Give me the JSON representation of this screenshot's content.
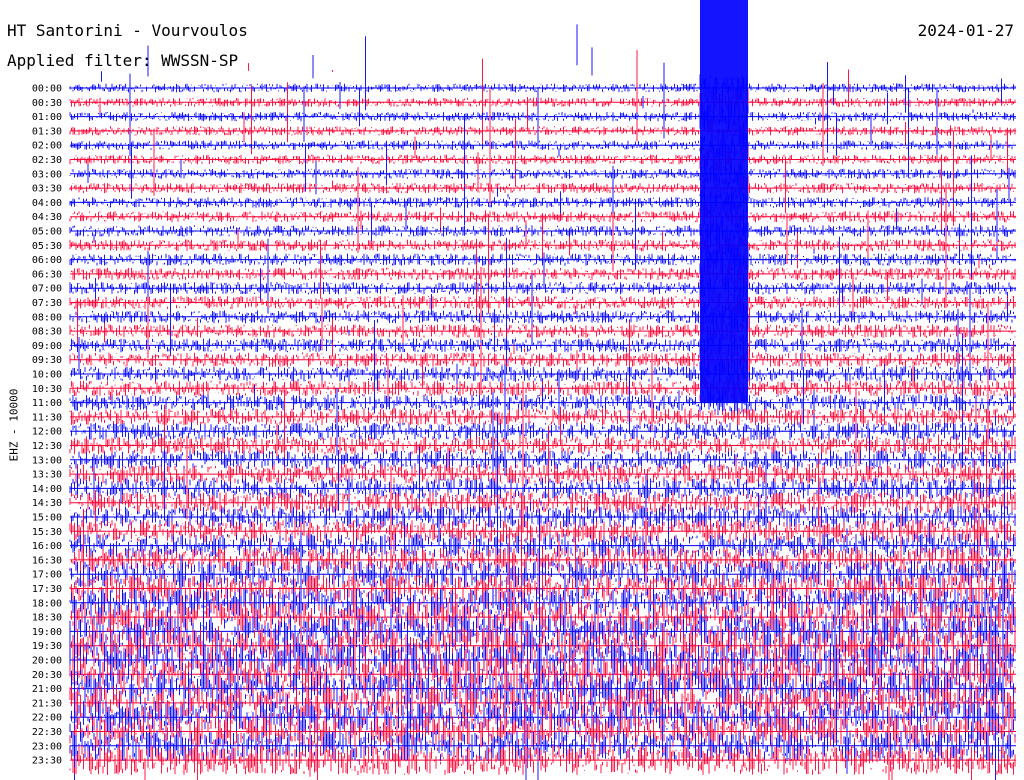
{
  "header": {
    "station": "HT Santorini - Vourvoulos",
    "filter": "Applied filter: WWSSN-SP",
    "date": "2024-01-27"
  },
  "chart_data": {
    "type": "line",
    "ylabel": "EHZ - 10000",
    "tick_labels": [
      "00:00",
      "00:30",
      "01:00",
      "01:30",
      "02:00",
      "02:30",
      "03:00",
      "03:30",
      "04:00",
      "04:30",
      "05:00",
      "05:30",
      "06:00",
      "06:30",
      "07:00",
      "07:30",
      "08:00",
      "08:30",
      "09:00",
      "09:30",
      "10:00",
      "10:30",
      "11:00",
      "11:30",
      "12:00",
      "12:30",
      "13:00",
      "13:30",
      "14:00",
      "14:30",
      "15:00",
      "15:30",
      "16:00",
      "16:30",
      "17:00",
      "17:30",
      "18:00",
      "18:30",
      "19:00",
      "19:30",
      "20:00",
      "20:30",
      "21:00",
      "21:30",
      "22:00",
      "22:30",
      "23:00",
      "23:30"
    ],
    "line_colors": [
      "#0000ff",
      "#ff0033"
    ],
    "activity": {
      "minutes": [
        0,
        180,
        360,
        540,
        660,
        780,
        900,
        990,
        1050,
        1110,
        1170,
        1260,
        1320,
        1380,
        1439
      ],
      "level": [
        0.15,
        0.18,
        0.25,
        0.3,
        0.38,
        0.45,
        0.55,
        0.62,
        0.75,
        0.85,
        0.95,
        1.0,
        0.9,
        0.85,
        0.8
      ]
    },
    "burst": {
      "start": "00:00",
      "end": "11:30"
    }
  }
}
